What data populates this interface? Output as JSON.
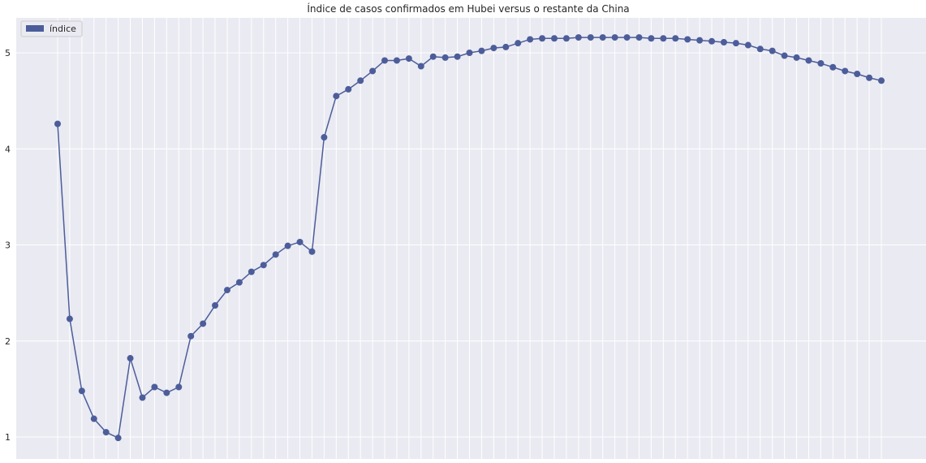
{
  "chart_data": {
    "type": "line",
    "title": "Índice de casos confirmados em Hubei versus o restante da China",
    "xlabel": "",
    "ylabel": "",
    "ylim": [
      0.8,
      5.4
    ],
    "yticks": [
      1,
      2,
      3,
      4,
      5
    ],
    "grid": true,
    "legend_position": "top-left",
    "colors": {
      "series": "#4c5d9a",
      "background": "#eaeaf2",
      "grid": "#ffffff"
    },
    "x": [
      0,
      1,
      2,
      3,
      4,
      5,
      6,
      7,
      8,
      9,
      10,
      11,
      12,
      13,
      14,
      15,
      16,
      17,
      18,
      19,
      20,
      21,
      22,
      23,
      24,
      25,
      26,
      27,
      28,
      29,
      30,
      31,
      32,
      33,
      34,
      35,
      36,
      37,
      38,
      39,
      40,
      41,
      42,
      43,
      44,
      45,
      46,
      47,
      48,
      49,
      50,
      51,
      52,
      53,
      54,
      55,
      56,
      57,
      58,
      59,
      60,
      61,
      62,
      63,
      64,
      65,
      66,
      67,
      68
    ],
    "series": [
      {
        "name": "índice",
        "values": [
          4.26,
          2.23,
          1.48,
          1.19,
          1.05,
          0.99,
          1.82,
          1.41,
          1.52,
          1.46,
          1.52,
          2.05,
          2.18,
          2.37,
          2.53,
          2.61,
          2.72,
          2.79,
          2.9,
          2.99,
          3.03,
          2.93,
          4.12,
          4.55,
          4.62,
          4.71,
          4.81,
          4.92,
          4.92,
          4.94,
          4.86,
          4.96,
          4.95,
          4.96,
          5.0,
          5.02,
          5.05,
          5.06,
          5.1,
          5.14,
          5.15,
          5.15,
          5.15,
          5.16,
          5.16,
          5.16,
          5.16,
          5.16,
          5.16,
          5.15,
          5.15,
          5.15,
          5.14,
          5.13,
          5.12,
          5.11,
          5.1,
          5.08,
          5.04,
          5.02,
          4.97,
          4.95,
          4.92,
          4.89,
          4.85,
          4.81,
          4.78,
          4.74,
          4.71
        ]
      }
    ]
  }
}
